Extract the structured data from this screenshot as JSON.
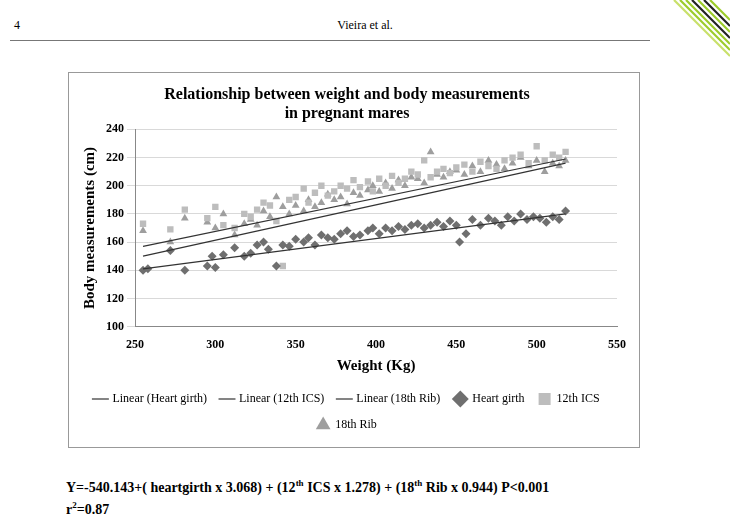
{
  "header": {
    "page": "4",
    "running_head": "Vieira et al."
  },
  "chart_data": {
    "type": "scatter",
    "title": [
      "Relationship between weight and body measurements",
      "in pregnant mares"
    ],
    "x_label": "Weight (Kg)",
    "y_label": "Body measurements (cm)",
    "xlim": [
      250,
      550
    ],
    "xticks": [
      250,
      300,
      350,
      400,
      450,
      500,
      550
    ],
    "ylim": [
      100,
      240
    ],
    "yticks": [
      100,
      120,
      140,
      160,
      180,
      200,
      220,
      240
    ],
    "grid": "y",
    "legend": "bottom",
    "series": [
      {
        "name": "Heart girth",
        "type": "scatter",
        "marker": "diamond",
        "color": "#6f6f6f",
        "x": [
          255,
          258,
          272,
          281,
          295,
          298,
          300,
          305,
          312,
          318,
          322,
          326,
          330,
          333,
          338,
          342,
          346,
          350,
          355,
          358,
          362,
          366,
          370,
          374,
          378,
          382,
          386,
          390,
          395,
          398,
          402,
          406,
          410,
          414,
          418,
          422,
          426,
          430,
          434,
          438,
          442,
          446,
          450,
          452,
          456,
          460,
          465,
          470,
          474,
          478,
          482,
          486,
          490,
          494,
          498,
          502,
          506,
          510,
          514,
          518
        ],
        "values": [
          140,
          141,
          154,
          140,
          143,
          150,
          142,
          151,
          156,
          150,
          152,
          158,
          160,
          155,
          143,
          158,
          157,
          162,
          160,
          163,
          158,
          165,
          163,
          162,
          166,
          168,
          164,
          165,
          168,
          170,
          166,
          170,
          168,
          171,
          169,
          172,
          173,
          170,
          172,
          174,
          171,
          175,
          172,
          160,
          166,
          176,
          172,
          177,
          175,
          172,
          178,
          175,
          180,
          176,
          178,
          177,
          174,
          178,
          176,
          182
        ]
      },
      {
        "name": "12th ICS",
        "type": "scatter",
        "marker": "square",
        "color": "#bdbdbd",
        "x": [
          255,
          272,
          281,
          295,
          300,
          305,
          312,
          318,
          322,
          326,
          330,
          334,
          338,
          342,
          346,
          350,
          355,
          358,
          362,
          366,
          370,
          374,
          378,
          382,
          386,
          390,
          395,
          398,
          402,
          406,
          410,
          414,
          418,
          422,
          426,
          430,
          434,
          438,
          442,
          446,
          450,
          455,
          460,
          465,
          470,
          475,
          480,
          485,
          490,
          495,
          500,
          505,
          510,
          514,
          518
        ],
        "values": [
          173,
          169,
          183,
          177,
          185,
          172,
          170,
          180,
          178,
          183,
          188,
          186,
          175,
          143,
          190,
          192,
          198,
          188,
          195,
          200,
          193,
          196,
          200,
          198,
          204,
          199,
          203,
          196,
          205,
          200,
          207,
          202,
          205,
          210,
          208,
          218,
          206,
          210,
          212,
          209,
          213,
          215,
          210,
          217,
          214,
          212,
          218,
          220,
          222,
          216,
          228,
          218,
          222,
          220,
          224
        ]
      },
      {
        "name": "18th Rib",
        "type": "scatter",
        "marker": "triangle",
        "color": "#9e9e9e",
        "x": [
          255,
          272,
          281,
          295,
          300,
          305,
          312,
          318,
          322,
          326,
          330,
          334,
          338,
          342,
          346,
          350,
          355,
          358,
          362,
          366,
          370,
          374,
          378,
          382,
          386,
          390,
          395,
          398,
          402,
          406,
          410,
          414,
          418,
          422,
          426,
          430,
          434,
          438,
          442,
          446,
          450,
          455,
          460,
          465,
          470,
          475,
          480,
          485,
          490,
          495,
          500,
          505,
          510,
          514,
          518
        ],
        "values": [
          168,
          160,
          177,
          174,
          170,
          180,
          165,
          173,
          176,
          172,
          182,
          178,
          192,
          185,
          180,
          186,
          182,
          190,
          185,
          188,
          194,
          190,
          192,
          187,
          195,
          193,
          197,
          200,
          196,
          202,
          198,
          204,
          200,
          206,
          205,
          202,
          224,
          208,
          206,
          210,
          211,
          208,
          214,
          210,
          218,
          215,
          212,
          216,
          220,
          214,
          218,
          210,
          216,
          214,
          218
        ]
      },
      {
        "name": "Linear (Heart girth)",
        "type": "line",
        "line_style": "solid",
        "color": "#333333",
        "x": [
          255,
          518
        ],
        "values": [
          141,
          180
        ]
      },
      {
        "name": "Linear (12th ICS)",
        "type": "line",
        "line_style": "solid",
        "color": "#333333",
        "x": [
          255,
          518
        ],
        "values": [
          157,
          219
        ]
      },
      {
        "name": "Linear (18th Rib)",
        "type": "line",
        "line_style": "solid",
        "color": "#333333",
        "x": [
          255,
          518
        ],
        "values": [
          150,
          216
        ]
      }
    ]
  },
  "equation_lines": [
    "Y=-540.143+( heartgirth x 3.068) + (12th ICS x 1.278) + (18th Rib x 0.944) P<0.001",
    "r2=0.87"
  ]
}
